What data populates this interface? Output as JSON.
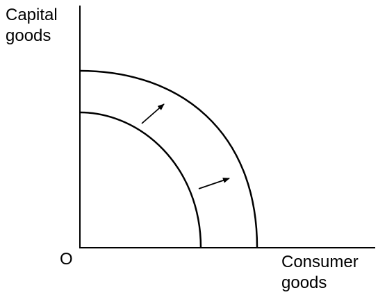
{
  "axes": {
    "y_label_lines": [
      "Capital",
      "goods"
    ],
    "x_label_lines": [
      "Consumer",
      "goods"
    ],
    "origin_label": "O"
  },
  "curves": [
    {
      "name": "original-ppf",
      "shape": "concave-to-origin"
    },
    {
      "name": "shifted-ppf",
      "shape": "concave-to-origin"
    }
  ],
  "arrows": [
    {
      "name": "upper-shift-arrow",
      "direction": "outward"
    },
    {
      "name": "lower-shift-arrow",
      "direction": "outward"
    }
  ],
  "colors": {
    "ink": "#000000",
    "background": "#ffffff"
  }
}
